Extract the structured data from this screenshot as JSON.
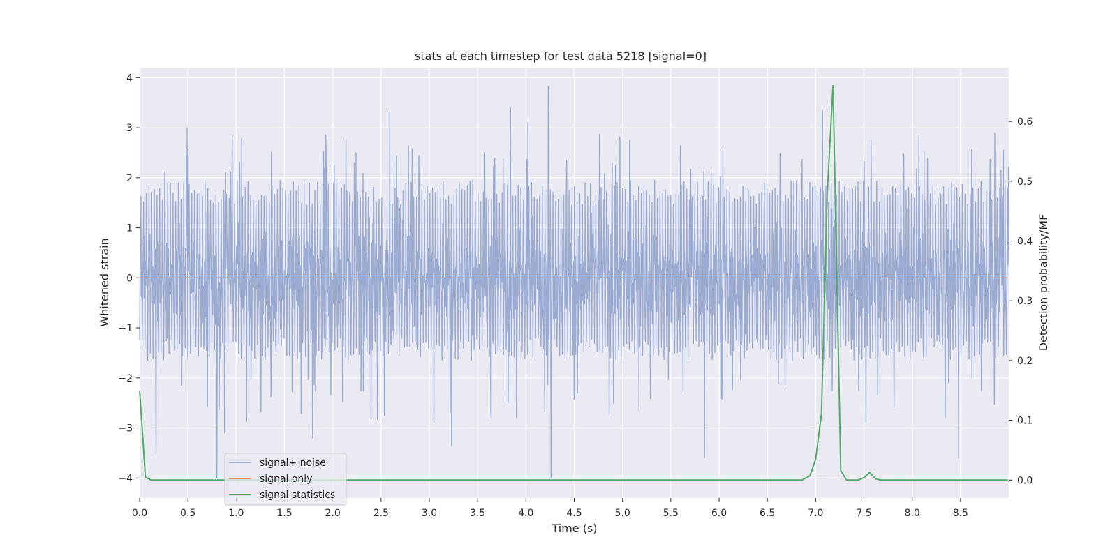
{
  "chart_data": {
    "type": "line",
    "title": "stats at each timestep for test data 5218 [signal=0]",
    "xlabel": "Time (s)",
    "ylabel_left": "Whitened strain",
    "ylabel_right": "Detection probability/MF",
    "xlim": [
      0,
      9.0
    ],
    "ylim_left": [
      -4.4,
      4.2
    ],
    "ylim_right": [
      -0.03,
      0.69
    ],
    "x_ticks": [
      0.0,
      0.5,
      1.0,
      1.5,
      2.0,
      2.5,
      3.0,
      3.5,
      4.0,
      4.5,
      5.0,
      5.5,
      6.0,
      6.5,
      7.0,
      7.5,
      8.0,
      8.5
    ],
    "x_tick_labels": [
      "0.0",
      "0.5",
      "1.0",
      "1.5",
      "2.0",
      "2.5",
      "3.0",
      "3.5",
      "4.0",
      "4.5",
      "5.0",
      "5.5",
      "6.0",
      "6.5",
      "7.0",
      "7.5",
      "8.0",
      "8.5"
    ],
    "y_left_ticks": [
      4,
      3,
      2,
      1,
      0,
      -1,
      -2,
      -3,
      -4
    ],
    "y_left_tick_labels": [
      "4",
      "3",
      "2",
      "1",
      "0",
      "−1",
      "−2",
      "−3",
      "−4"
    ],
    "y_right_ticks": [
      0.6,
      0.5,
      0.4,
      0.3,
      0.2,
      0.1,
      0.0
    ],
    "y_right_tick_labels": [
      "0.6",
      "0.5",
      "0.4",
      "0.3",
      "0.2",
      "0.1",
      "0.0"
    ],
    "grid": true,
    "legend_position": "lower-left",
    "colors": {
      "plot_background": "#eaeaf2",
      "grid": "#ffffff",
      "noise": "#9babd1",
      "signal": "#dd8452",
      "statistics": "#55a868"
    },
    "series": [
      {
        "name": "signal+ noise",
        "axis": "left",
        "kind": "noise",
        "envelope_typical": [
          -1.6,
          1.9
        ],
        "notable_spikes": [
          {
            "x": 0.17,
            "y": -3.5
          },
          {
            "x": 0.49,
            "y": 3.0
          },
          {
            "x": 0.8,
            "y": -4.0
          },
          {
            "x": 0.88,
            "y": -3.1
          },
          {
            "x": 0.96,
            "y": 2.85
          },
          {
            "x": 1.79,
            "y": -3.2
          },
          {
            "x": 2.59,
            "y": 3.35
          },
          {
            "x": 3.23,
            "y": -3.35
          },
          {
            "x": 3.84,
            "y": 3.4
          },
          {
            "x": 4.02,
            "y": 3.1
          },
          {
            "x": 4.23,
            "y": 3.83
          },
          {
            "x": 4.26,
            "y": -4.0
          },
          {
            "x": 5.85,
            "y": -3.6
          },
          {
            "x": 7.07,
            "y": 3.35
          },
          {
            "x": 8.48,
            "y": -3.6
          }
        ]
      },
      {
        "name": "signal only",
        "axis": "left",
        "kind": "line",
        "x": [
          0.0,
          8.99
        ],
        "y": [
          0.0,
          0.0
        ]
      },
      {
        "name": "signal statistics",
        "axis": "right",
        "kind": "line",
        "x": [
          0.0,
          0.06,
          0.12,
          0.5,
          1.0,
          2.0,
          3.0,
          4.0,
          5.0,
          6.0,
          6.86,
          6.94,
          7.0,
          7.06,
          7.12,
          7.18,
          7.26,
          7.32,
          7.44,
          7.5,
          7.56,
          7.62,
          7.68,
          8.0,
          8.5,
          8.99
        ],
        "y": [
          0.15,
          0.005,
          0.0,
          0.0,
          0.0,
          0.0,
          0.0,
          0.0,
          0.0,
          0.0,
          0.0,
          0.007,
          0.035,
          0.11,
          0.48,
          0.66,
          0.016,
          0.0,
          0.0,
          0.004,
          0.013,
          0.002,
          0.0,
          0.0,
          0.0,
          0.0
        ]
      }
    ]
  }
}
